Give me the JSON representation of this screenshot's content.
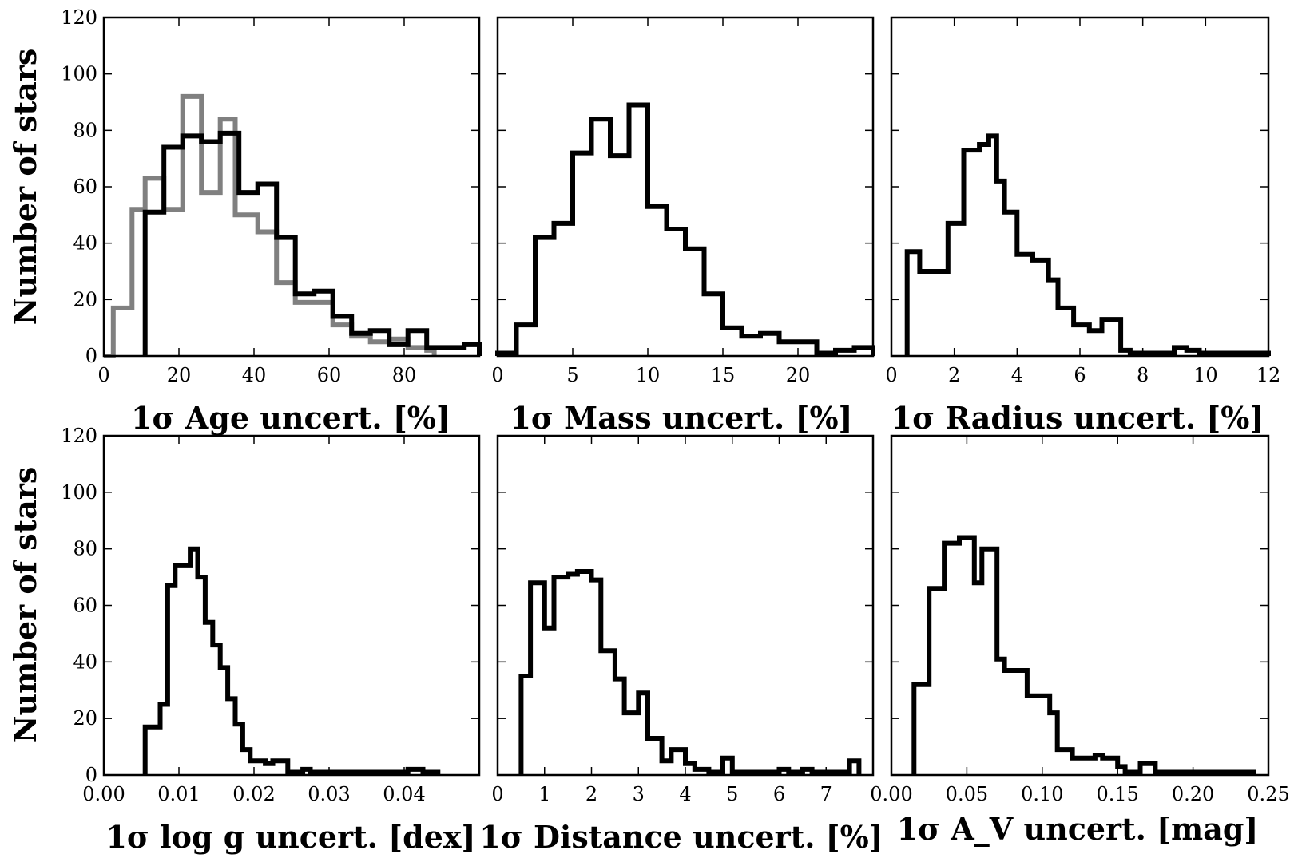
{
  "figure": {
    "ylabel": "Number of stars",
    "colors": {
      "primary": "#000000",
      "secondary": "#808080"
    }
  },
  "chart_data": [
    {
      "type": "histogram",
      "xlabel": "1σ Age uncert. [%]",
      "xlim": [
        0,
        100
      ],
      "ylim": [
        0,
        120
      ],
      "xticks": [
        0,
        20,
        40,
        60,
        80
      ],
      "yticks": [
        0,
        20,
        40,
        60,
        80,
        100,
        120
      ],
      "series": [
        {
          "color": "#808080",
          "bin_edges": [
            0,
            2.5,
            7.5,
            11,
            16,
            21,
            26,
            31,
            35,
            41,
            46,
            51,
            56,
            61,
            66,
            71,
            76,
            81,
            86,
            88
          ],
          "counts": [
            0,
            17,
            52,
            63,
            52,
            92,
            58,
            84,
            50,
            44,
            26,
            19,
            19,
            11,
            7,
            5,
            6,
            3,
            2
          ]
        },
        {
          "color": "#000000",
          "bin_edges": [
            11,
            16,
            21,
            26,
            31,
            36,
            41,
            46,
            51,
            56,
            61,
            66,
            71,
            76,
            81,
            86,
            91,
            96,
            100
          ],
          "counts": [
            51,
            74,
            78,
            76,
            79,
            58,
            61,
            42,
            22,
            23,
            14,
            8,
            9,
            4,
            9,
            3,
            3,
            4
          ]
        }
      ]
    },
    {
      "type": "histogram",
      "xlabel": "1σ Mass uncert. [%]",
      "xlim": [
        0,
        25
      ],
      "ylim": [
        0,
        120
      ],
      "xticks": [
        0,
        5,
        10,
        15,
        20
      ],
      "yticks": [
        0,
        20,
        40,
        60,
        80,
        100,
        120
      ],
      "series": [
        {
          "color": "#000000",
          "bin_edges": [
            0,
            1.25,
            2.5,
            3.75,
            5,
            6.25,
            7.5,
            8.75,
            10,
            11.25,
            12.5,
            13.75,
            15,
            16.25,
            17.5,
            18.75,
            20,
            21.25,
            22.5,
            23.75,
            25
          ],
          "counts": [
            1,
            11,
            42,
            47,
            72,
            84,
            71,
            89,
            53,
            45,
            38,
            22,
            10,
            7,
            8,
            5,
            5,
            1,
            2,
            3
          ]
        }
      ]
    },
    {
      "type": "histogram",
      "xlabel": "1σ Radius uncert. [%]",
      "xlim": [
        0,
        12
      ],
      "ylim": [
        0,
        120
      ],
      "xticks": [
        0,
        2,
        4,
        6,
        8,
        10,
        12
      ],
      "yticks": [
        0,
        20,
        40,
        60,
        80,
        100,
        120
      ],
      "series": [
        {
          "color": "#000000",
          "bin_edges": [
            0.5,
            0.9,
            1.8,
            2.3,
            2.8,
            3.1,
            3.35,
            3.6,
            4.0,
            4.5,
            5.0,
            5.3,
            5.8,
            6.3,
            6.7,
            7.3,
            7.6,
            8.0,
            9.0,
            9.4,
            9.8,
            10.4,
            12.0
          ],
          "counts": [
            37,
            30,
            47,
            73,
            75,
            78,
            62,
            51,
            36,
            34,
            27,
            17,
            11,
            9,
            13,
            2,
            1,
            1,
            3,
            2,
            1,
            1
          ]
        }
      ]
    },
    {
      "type": "histogram",
      "xlabel": "1σ log g uncert. [dex]",
      "xlim": [
        0,
        0.05
      ],
      "ylim": [
        0,
        120
      ],
      "xticks": [
        0.0,
        0.01,
        0.02,
        0.03,
        0.04
      ],
      "xtick_labels": [
        "0.00",
        "0.01",
        "0.02",
        "0.03",
        "0.04"
      ],
      "yticks": [
        0,
        20,
        40,
        60,
        80,
        100,
        120
      ],
      "series": [
        {
          "color": "#000000",
          "bin_edges": [
            0.0055,
            0.0075,
            0.0085,
            0.0095,
            0.0105,
            0.0115,
            0.0125,
            0.0135,
            0.0145,
            0.0155,
            0.0165,
            0.0175,
            0.0185,
            0.0195,
            0.0205,
            0.0215,
            0.0225,
            0.0245,
            0.0265,
            0.0275,
            0.0285,
            0.0305,
            0.0325,
            0.0345,
            0.0405,
            0.0425,
            0.0445
          ],
          "counts": [
            17,
            25,
            67,
            74,
            74,
            80,
            70,
            54,
            46,
            38,
            27,
            18,
            9,
            5,
            5,
            4,
            5,
            1,
            2,
            1,
            1,
            1,
            1,
            1,
            2,
            1
          ]
        }
      ]
    },
    {
      "type": "histogram",
      "xlabel": "1σ Distance uncert. [%]",
      "xlim": [
        0,
        8
      ],
      "ylim": [
        0,
        120
      ],
      "xticks": [
        0,
        1,
        2,
        3,
        4,
        5,
        6,
        7
      ],
      "yticks": [
        0,
        20,
        40,
        60,
        80,
        100,
        120
      ],
      "series": [
        {
          "color": "#000000",
          "bin_edges": [
            0.5,
            0.7,
            1.0,
            1.2,
            1.5,
            1.7,
            2.0,
            2.2,
            2.5,
            2.7,
            3.0,
            3.2,
            3.5,
            3.7,
            4.0,
            4.2,
            4.5,
            4.8,
            5.0,
            5.2,
            6.0,
            6.2,
            6.5,
            6.7,
            7.5,
            7.7
          ],
          "counts": [
            35,
            68,
            52,
            70,
            71,
            72,
            69,
            44,
            34,
            22,
            29,
            13,
            5,
            9,
            4,
            2,
            1,
            6,
            1,
            1,
            2,
            1,
            2,
            1,
            5
          ]
        }
      ]
    },
    {
      "type": "histogram",
      "xlabel": "1σ A_V uncert. [mag]",
      "xlim": [
        0,
        0.25
      ],
      "ylim": [
        0,
        120
      ],
      "xticks": [
        0.0,
        0.05,
        0.1,
        0.15,
        0.2,
        0.25
      ],
      "xtick_labels": [
        "0.00",
        "0.05",
        "0.10",
        "0.15",
        "0.20",
        "0.25"
      ],
      "yticks": [
        0,
        20,
        40,
        60,
        80,
        100,
        120
      ],
      "series": [
        {
          "color": "#000000",
          "bin_edges": [
            0.015,
            0.025,
            0.03,
            0.035,
            0.045,
            0.055,
            0.06,
            0.07,
            0.075,
            0.08,
            0.09,
            0.105,
            0.11,
            0.12,
            0.125,
            0.135,
            0.14,
            0.15,
            0.155,
            0.16,
            0.165,
            0.175,
            0.185,
            0.19,
            0.2,
            0.22,
            0.23,
            0.24
          ],
          "counts": [
            32,
            66,
            66,
            82,
            84,
            68,
            80,
            41,
            37,
            37,
            28,
            22,
            9,
            6,
            6,
            7,
            6,
            3,
            1,
            1,
            4,
            1,
            1,
            1,
            1,
            1,
            1
          ]
        }
      ]
    }
  ]
}
